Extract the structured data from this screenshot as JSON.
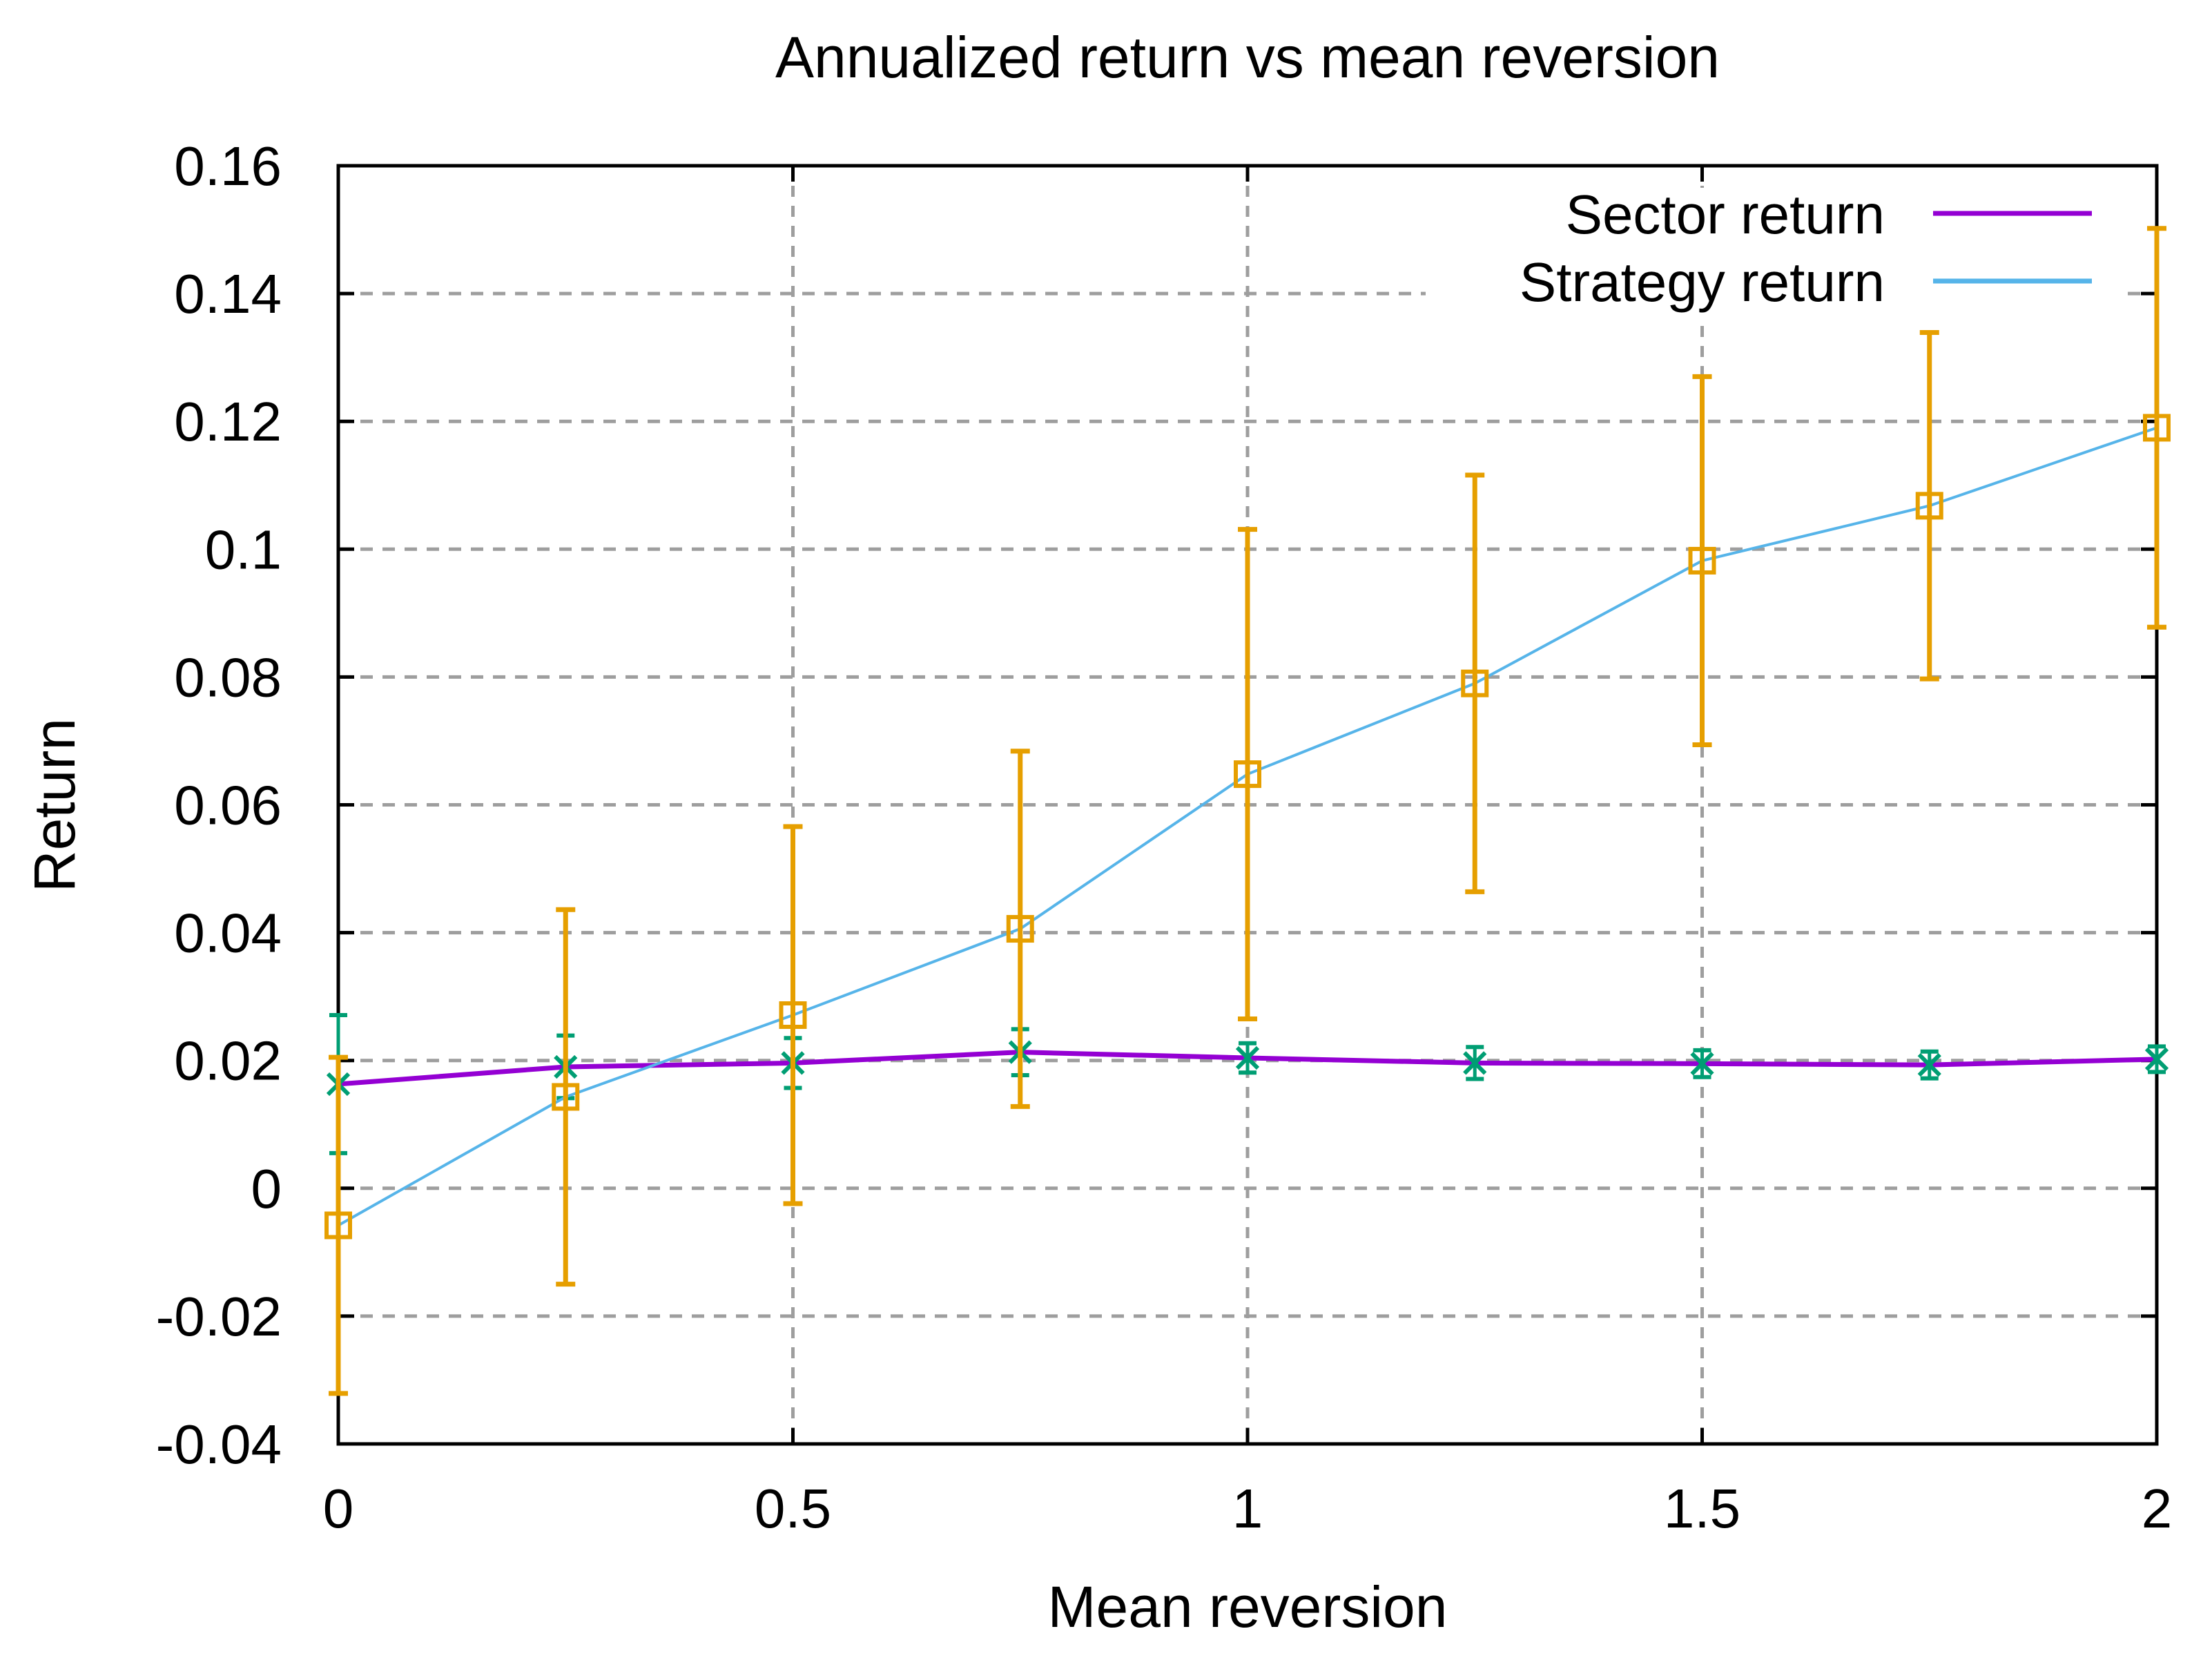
{
  "page": {
    "background": "#ffffff",
    "border_color": "#000000"
  },
  "chart_data": {
    "type": "line",
    "title": "Annualized return vs mean reversion",
    "xlabel": "Mean reversion",
    "ylabel": "Return",
    "xlim": [
      0,
      2
    ],
    "ylim": [
      -0.04,
      0.16
    ],
    "x_ticks": [
      0,
      0.5,
      1,
      1.5,
      2
    ],
    "x_tick_labels": [
      "0",
      "0.5",
      "1",
      "1.5",
      "2"
    ],
    "y_ticks": [
      0.16,
      0.14,
      0.12,
      0.1,
      0.08,
      0.06,
      0.04,
      0.02,
      0,
      -0.02,
      -0.04
    ],
    "y_tick_labels": [
      "0.16",
      "0.14",
      "0.12",
      "0.1",
      "0.08",
      "0.06",
      "0.04",
      "0.02",
      "0",
      "-0.02",
      "-0.04"
    ],
    "grid": true,
    "grid_color": "#9e9e9e",
    "legend_position": "top-right-inside",
    "x": [
      0,
      0.25,
      0.5,
      0.75,
      1,
      1.25,
      1.5,
      1.75,
      2
    ],
    "series": [
      {
        "name": "Sector return",
        "line_color": "#9400d3",
        "errorbar_color": "#009e73",
        "marker": "x",
        "values": [
          0.0163,
          0.019,
          0.0196,
          0.0213,
          0.0204,
          0.0196,
          0.0195,
          0.0193,
          0.0202
        ],
        "yerr": [
          0.0108,
          0.0049,
          0.0039,
          0.0036,
          0.0023,
          0.0025,
          0.0021,
          0.0021,
          0.002
        ]
      },
      {
        "name": "Strategy return",
        "line_color": "#56b4e9",
        "errorbar_color": "#e69f00",
        "marker": "square",
        "values": [
          -0.0058,
          0.0143,
          0.0271,
          0.0406,
          0.0648,
          0.079,
          0.0982,
          0.1068,
          0.119
        ],
        "yerr": [
          0.0263,
          0.0293,
          0.0295,
          0.0278,
          0.0383,
          0.0326,
          0.0288,
          0.0271,
          0.0312
        ]
      }
    ]
  }
}
